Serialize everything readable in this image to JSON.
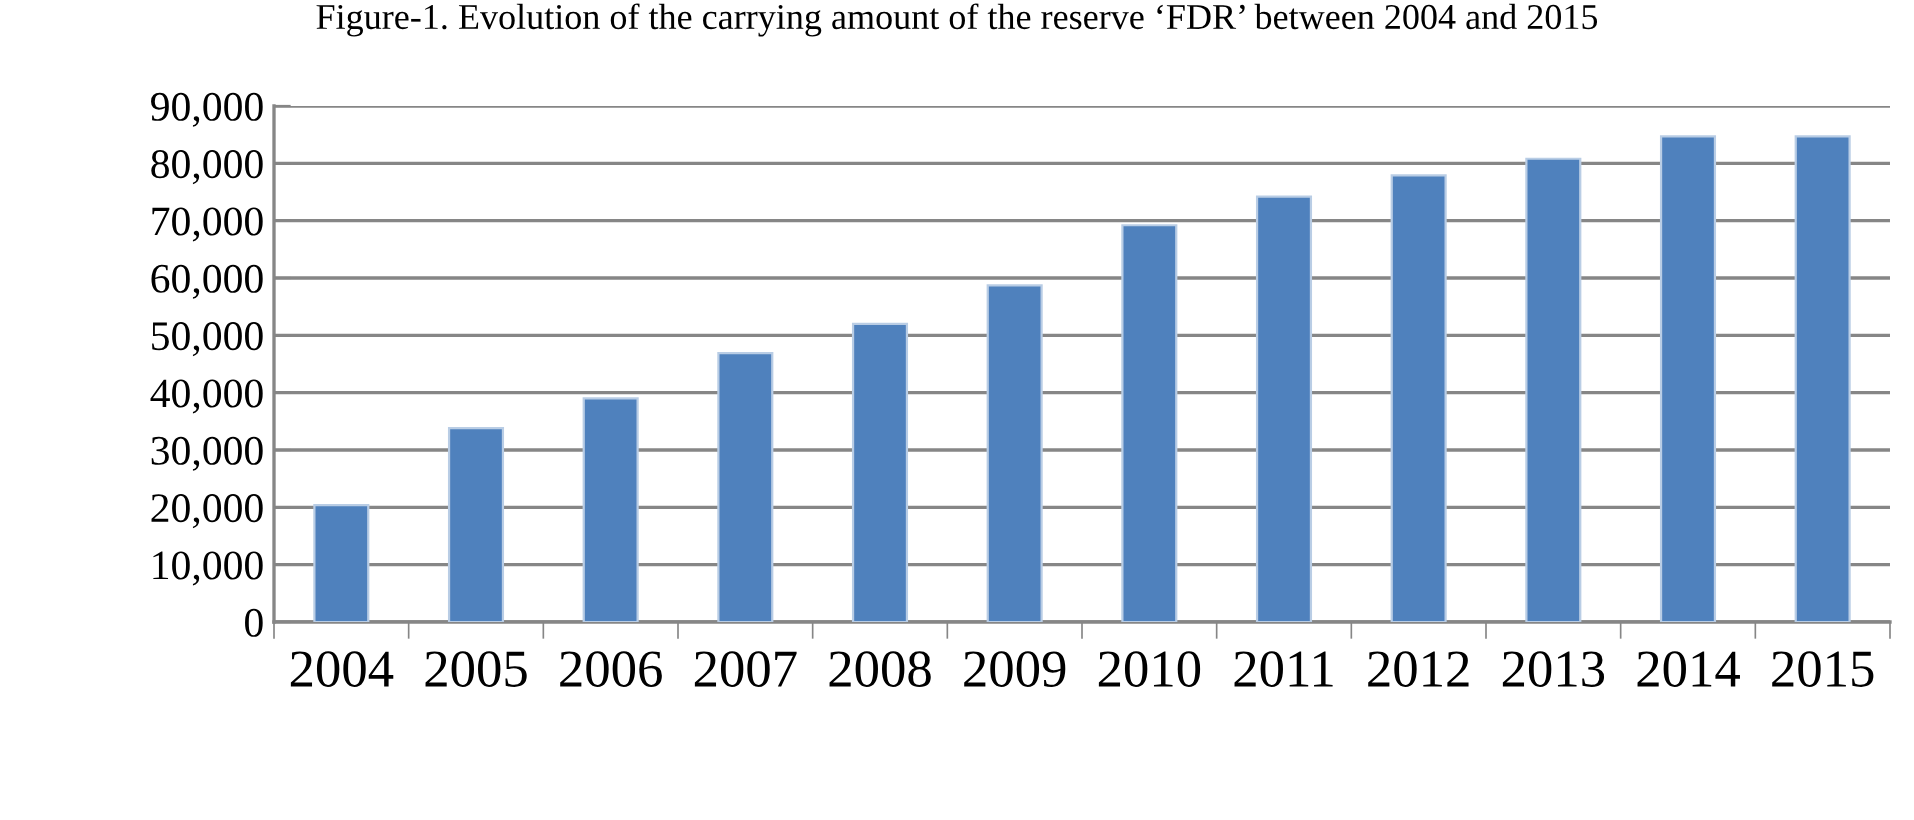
{
  "chart_data": {
    "type": "bar",
    "title": "Figure-1. Evolution of the carrying amount of the reserve ‘FDR’ between 2004 and 2015",
    "categories": [
      "2004",
      "2005",
      "2006",
      "2007",
      "2008",
      "2009",
      "2010",
      "2011",
      "2012",
      "2013",
      "2014",
      "2015"
    ],
    "values": [
      20400,
      33800,
      39000,
      46900,
      52000,
      58700,
      69200,
      74200,
      77900,
      80800,
      84700,
      84700
    ],
    "color": "#4f81bd",
    "ylim": [
      0,
      90000
    ],
    "yticks": [
      0,
      {
        "value": 10000,
        "label": "10,000"
      },
      {
        "value": 20000,
        "label": "20,000"
      },
      {
        "value": 30000,
        "label": "30,000"
      },
      {
        "value": 40000,
        "label": "40,000"
      },
      {
        "value": 50000,
        "label": "50,000"
      },
      {
        "value": 60000,
        "label": "60,000"
      },
      {
        "value": 70000,
        "label": "70,000"
      },
      {
        "value": 80000,
        "label": "80,000"
      },
      {
        "value": 90000,
        "label": "90,000"
      }
    ],
    "grid": "y"
  }
}
